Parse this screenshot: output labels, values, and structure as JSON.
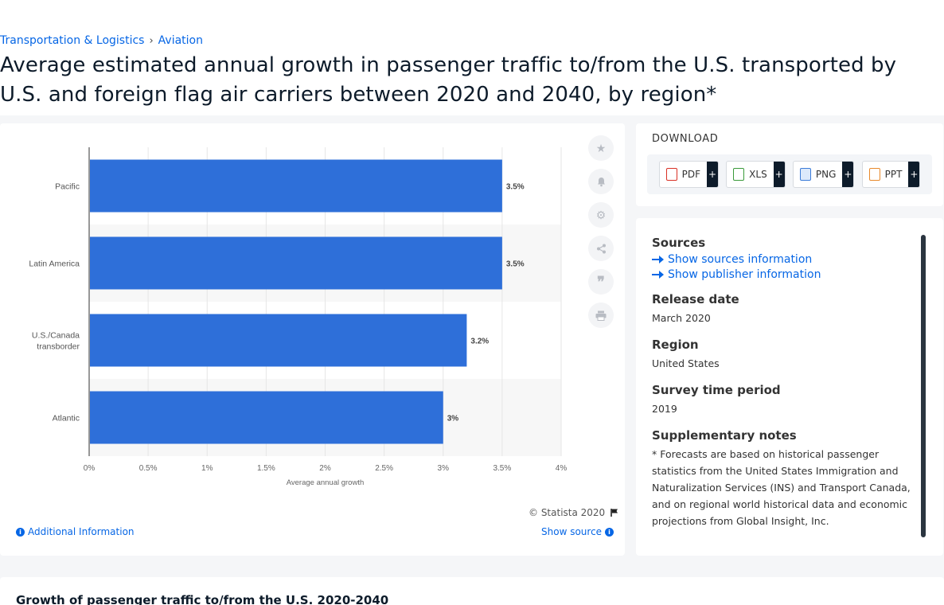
{
  "breadcrumb": {
    "items": [
      "Transportation & Logistics",
      "Aviation"
    ],
    "separator": "›"
  },
  "title": "Average estimated annual growth in passenger traffic to/from the U.S. transported by U.S. and foreign flag air carriers between 2020 and 2040, by region*",
  "chart_data": {
    "type": "bar",
    "orientation": "horizontal",
    "categories": [
      "Pacific",
      "Latin America",
      "U.S./Canada transborder",
      "Atlantic"
    ],
    "category_lines": [
      [
        "Pacific"
      ],
      [
        "Latin America"
      ],
      [
        "U.S./Canada",
        "transborder"
      ],
      [
        "Atlantic"
      ]
    ],
    "values": [
      3.5,
      3.5,
      3.2,
      3.0
    ],
    "data_labels": [
      "3.5%",
      "3.5%",
      "3.2%",
      "3%"
    ],
    "xlim": [
      0,
      4
    ],
    "x_ticks": [
      0,
      0.5,
      1,
      1.5,
      2,
      2.5,
      3,
      3.5,
      4
    ],
    "x_tick_labels": [
      "0%",
      "0.5%",
      "1%",
      "1.5%",
      "2%",
      "2.5%",
      "3%",
      "3.5%",
      "4%"
    ],
    "xlabel": "Average annual growth",
    "bar_color": "#2e6fd9",
    "grid": true
  },
  "chart_footer": {
    "copyright": "© Statista 2020",
    "additional_info": "Additional Information",
    "show_source": "Show source"
  },
  "download": {
    "title": "DOWNLOAD",
    "buttons": [
      {
        "label": "PDF",
        "icon": "pdf-icon",
        "color": "#d93025"
      },
      {
        "label": "XLS",
        "icon": "xls-icon",
        "color": "#3a9a3a"
      },
      {
        "label": "PNG",
        "icon": "png-icon",
        "color": "#3b7bd8"
      },
      {
        "label": "PPT",
        "icon": "ppt-icon",
        "color": "#e8892b"
      }
    ],
    "plus": "+"
  },
  "info": {
    "sources_heading": "Sources",
    "show_sources": "Show sources information",
    "show_publisher": "Show publisher information",
    "release_heading": "Release date",
    "release_value": "March 2020",
    "region_heading": "Region",
    "region_value": "United States",
    "survey_heading": "Survey time period",
    "survey_value": "2019",
    "notes_heading": "Supplementary notes",
    "notes_value": "* Forecasts are based on historical passenger statistics from the United States Immigration and Naturalization Services (INS) and Transport Canada, and on regional world historical data and economic projections from Global Insight, Inc."
  },
  "related": {
    "title": "Growth of passenger traffic to/from the U.S. 2020-2040"
  }
}
